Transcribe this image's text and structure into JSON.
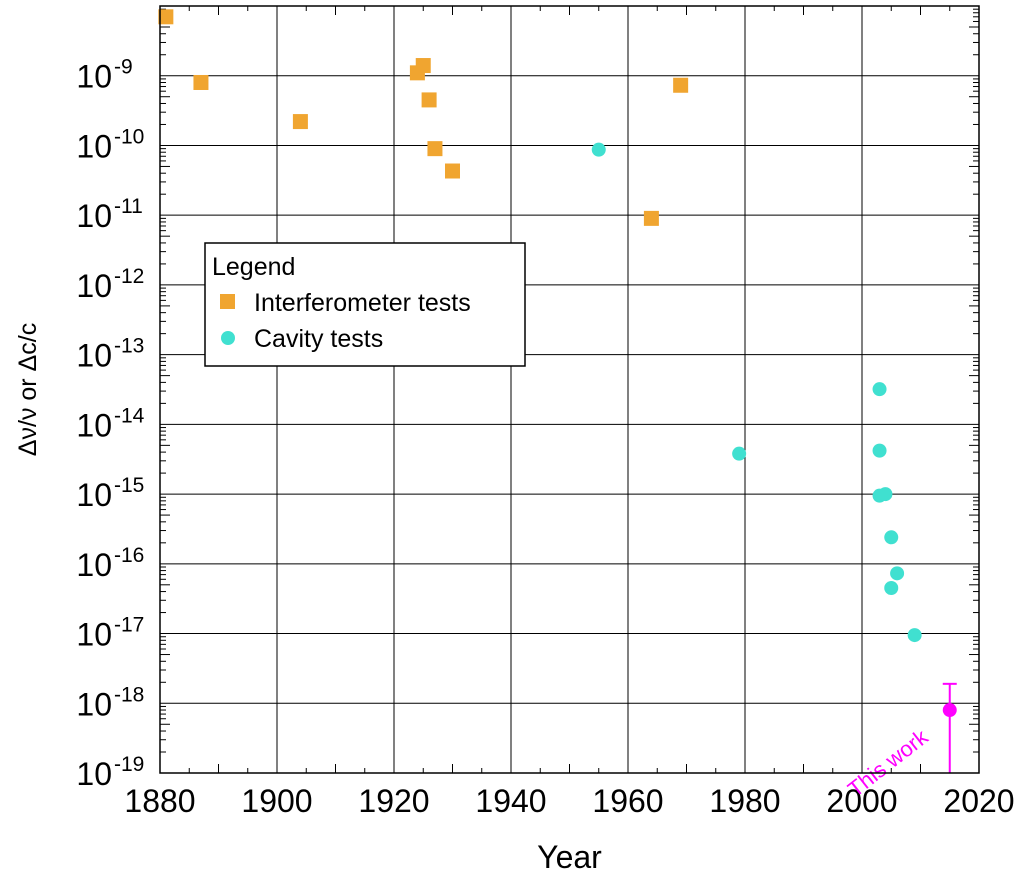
{
  "chart_data": {
    "type": "scatter",
    "xlabel": "Year",
    "ylabel": "Δν/ν or Δc/c",
    "xlim": [
      1880,
      2020
    ],
    "x_ticks": [
      "1880",
      "1900",
      "1920",
      "1940",
      "1960",
      "1980",
      "2000",
      "2020"
    ],
    "ylim": [
      1e-19,
      1e-08
    ],
    "y_scale": "log",
    "y_tick_base": "10",
    "y_tick_exponents": [
      "-9",
      "-10",
      "-11",
      "-12",
      "-13",
      "-14",
      "-15",
      "-16",
      "-17",
      "-18",
      "-19"
    ],
    "grid": true,
    "legend": {
      "title": "Legend",
      "position": "upper-left",
      "entries": [
        "Interferometer tests",
        "Cavity tests"
      ]
    },
    "series": [
      {
        "name": "Interferometer tests",
        "marker": "square",
        "color": "#f0a530",
        "points": [
          {
            "x": 1881,
            "y": 7e-09
          },
          {
            "x": 1887,
            "y": 8e-10
          },
          {
            "x": 1904,
            "y": 2.2e-10
          },
          {
            "x": 1924,
            "y": 1.1e-09
          },
          {
            "x": 1925,
            "y": 1.4e-09
          },
          {
            "x": 1926,
            "y": 4.5e-10
          },
          {
            "x": 1927,
            "y": 9e-11
          },
          {
            "x": 1930,
            "y": 4.3e-11
          },
          {
            "x": 1964,
            "y": 9e-12
          },
          {
            "x": 1969,
            "y": 7.3e-10
          }
        ]
      },
      {
        "name": "Cavity tests",
        "marker": "circle",
        "color": "#40e0d0",
        "points": [
          {
            "x": 1955,
            "y": 8.7e-11
          },
          {
            "x": 1979,
            "y": 3.8e-15
          },
          {
            "x": 2003,
            "y": 3.2e-14
          },
          {
            "x": 2003,
            "y": 4.2e-15
          },
          {
            "x": 2003,
            "y": 9.5e-16
          },
          {
            "x": 2004,
            "y": 1e-15
          },
          {
            "x": 2005,
            "y": 2.4e-16
          },
          {
            "x": 2005,
            "y": 4.5e-17
          },
          {
            "x": 2006,
            "y": 7.3e-17
          },
          {
            "x": 2009,
            "y": 9.5e-18
          }
        ]
      },
      {
        "marker": "circle",
        "color": "#ff00ff",
        "points": [
          {
            "x": 2015,
            "y": 8e-19,
            "y_err_high": 1.9e-18,
            "y_err_low": 1e-19
          }
        ],
        "annotation": "This work"
      }
    ]
  }
}
